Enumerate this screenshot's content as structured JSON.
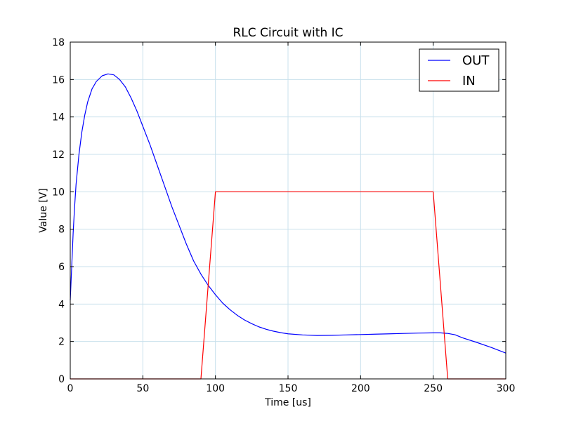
{
  "chart_data": {
    "type": "line",
    "title": "RLC Circuit with IC",
    "xlabel": "Time  [us]",
    "ylabel": "Value [V]",
    "xlim": [
      0,
      300
    ],
    "ylim": [
      0,
      18
    ],
    "xticks": [
      0,
      50,
      100,
      150,
      200,
      250,
      300
    ],
    "yticks": [
      0,
      2,
      4,
      6,
      8,
      10,
      12,
      14,
      16,
      18
    ],
    "grid": true,
    "legend": "top-right",
    "series": [
      {
        "name": "OUT",
        "color": "#0000ff",
        "points": [
          [
            0,
            4.2
          ],
          [
            1,
            6.0
          ],
          [
            2,
            7.8
          ],
          [
            3,
            9.2
          ],
          [
            4,
            10.4
          ],
          [
            6,
            12.0
          ],
          [
            8,
            13.2
          ],
          [
            10,
            14.1
          ],
          [
            12,
            14.8
          ],
          [
            15,
            15.5
          ],
          [
            18,
            15.9
          ],
          [
            22,
            16.2
          ],
          [
            26,
            16.3
          ],
          [
            30,
            16.25
          ],
          [
            34,
            16.0
          ],
          [
            38,
            15.6
          ],
          [
            42,
            15.0
          ],
          [
            46,
            14.3
          ],
          [
            50,
            13.5
          ],
          [
            55,
            12.5
          ],
          [
            60,
            11.4
          ],
          [
            65,
            10.3
          ],
          [
            70,
            9.2
          ],
          [
            75,
            8.2
          ],
          [
            80,
            7.2
          ],
          [
            85,
            6.3
          ],
          [
            90,
            5.6
          ],
          [
            95,
            5.0
          ],
          [
            100,
            4.5
          ],
          [
            105,
            4.05
          ],
          [
            110,
            3.7
          ],
          [
            115,
            3.4
          ],
          [
            120,
            3.15
          ],
          [
            125,
            2.95
          ],
          [
            130,
            2.78
          ],
          [
            135,
            2.65
          ],
          [
            140,
            2.55
          ],
          [
            145,
            2.47
          ],
          [
            150,
            2.41
          ],
          [
            160,
            2.35
          ],
          [
            170,
            2.32
          ],
          [
            180,
            2.33
          ],
          [
            190,
            2.35
          ],
          [
            200,
            2.37
          ],
          [
            210,
            2.39
          ],
          [
            220,
            2.41
          ],
          [
            230,
            2.43
          ],
          [
            240,
            2.45
          ],
          [
            250,
            2.46
          ],
          [
            255,
            2.46
          ],
          [
            260,
            2.43
          ],
          [
            265,
            2.36
          ],
          [
            270,
            2.2
          ],
          [
            280,
            1.95
          ],
          [
            290,
            1.68
          ],
          [
            300,
            1.38
          ]
        ]
      },
      {
        "name": "IN",
        "color": "#ff0000",
        "points": [
          [
            0,
            0
          ],
          [
            90,
            0
          ],
          [
            100,
            10
          ],
          [
            250,
            10
          ],
          [
            260,
            0
          ],
          [
            300,
            0
          ]
        ]
      }
    ]
  }
}
